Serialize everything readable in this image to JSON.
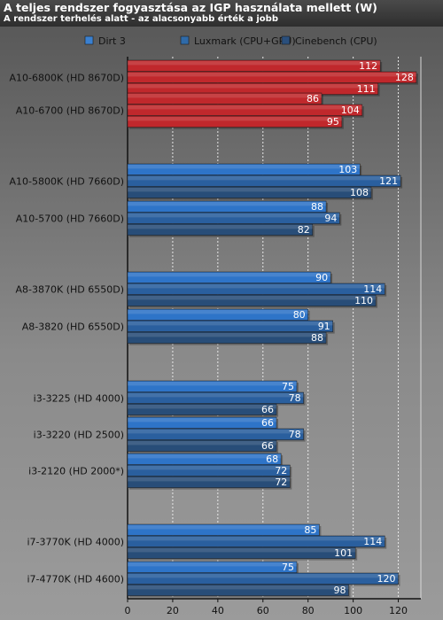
{
  "title": "A teljes rendszer fogyasztása az IGP használata mellett (W)",
  "subtitle": "A rendszer terhelés alatt - az alacsonyabb érték a jobb",
  "colors": {
    "amd_bar": "#c0282c",
    "intel_bar_light": "#2e74c8",
    "intel_bar_mid": "#2a5f9e",
    "intel_bar_dark": "#284d78",
    "legend_dirt3": "#3a80d0",
    "legend_luxmark": "#2f6aa8",
    "legend_cinebench": "#2a4f7c"
  },
  "chart_data": {
    "type": "bar",
    "orientation": "horizontal",
    "title": "A teljes rendszer fogyasztása az IGP használata mellett (W)",
    "subtitle": "A rendszer terhelés alatt - az alacsonyabb érték a jobb",
    "categories": [
      "A10-6800K (HD 8670D)",
      "A10-6700 (HD 8670D)",
      "A10-5800K (HD 7660D)",
      "A10-5700 (HD 7660D)",
      "A8-3870K (HD 6550D)",
      "A8-3820 (HD 6550D)",
      "i3-3225 (HD 4000)",
      "i3-3220 (HD 2500)",
      "i3-2120 (HD 2000*)",
      "i7-3770K (HD 4000)",
      "i7-4770K (HD 4600)"
    ],
    "highlighted_categories": [
      0,
      1
    ],
    "series": [
      {
        "name": "Dirt 3",
        "values": [
          112,
          86,
          103,
          88,
          90,
          80,
          75,
          66,
          68,
          85,
          75
        ]
      },
      {
        "name": "Luxmark (CPU+GPU)",
        "values": [
          128,
          104,
          121,
          94,
          114,
          91,
          78,
          78,
          72,
          114,
          120
        ]
      },
      {
        "name": "Cinebench (CPU)",
        "values": [
          111,
          95,
          108,
          82,
          110,
          88,
          66,
          66,
          72,
          101,
          98
        ]
      }
    ],
    "xlim": [
      0,
      130
    ],
    "xticks": [
      0,
      20,
      40,
      60,
      80,
      100,
      120
    ],
    "grid": true,
    "legend_position": "top"
  }
}
